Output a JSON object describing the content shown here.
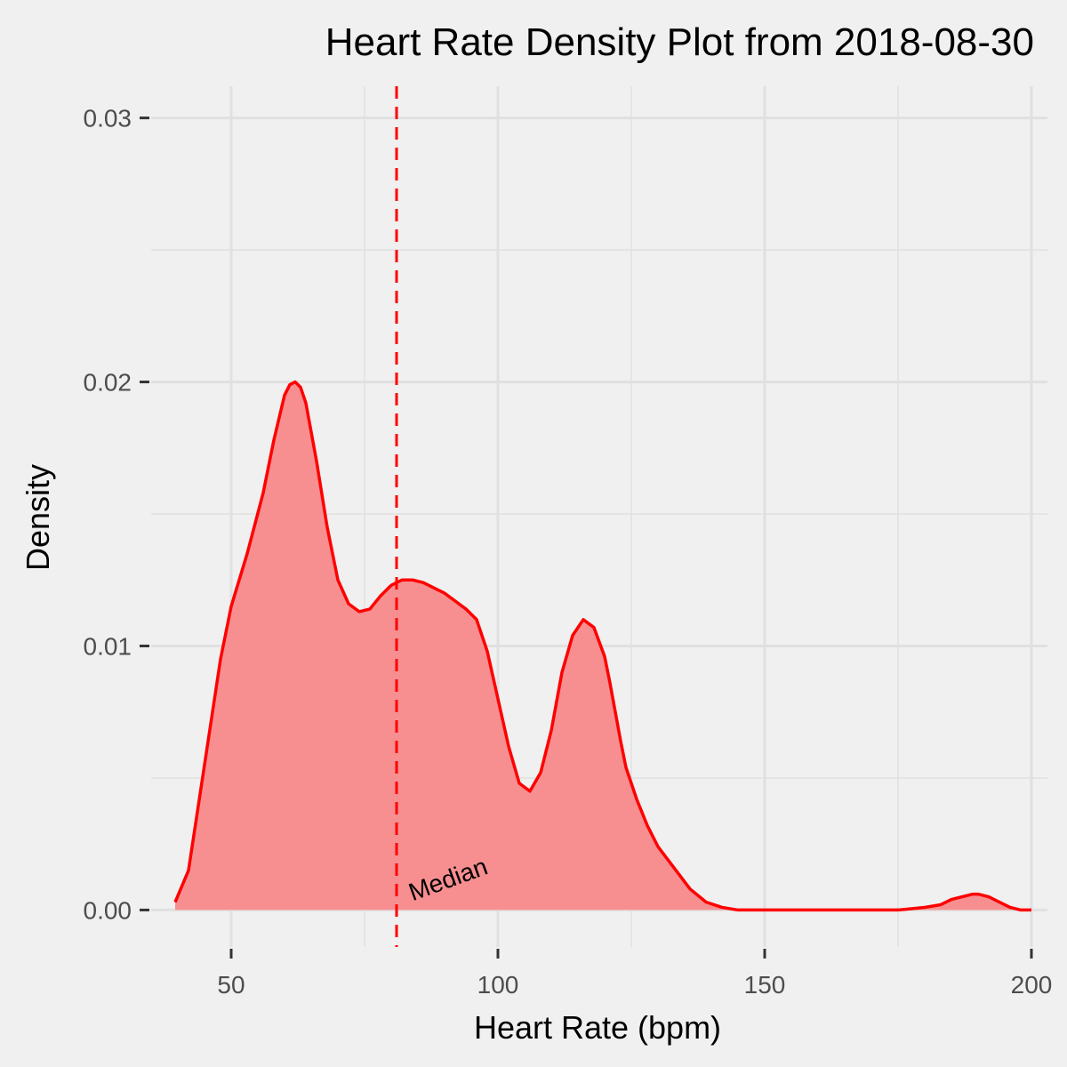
{
  "chart_data": {
    "type": "area",
    "title": "Heart Rate Density Plot from 2018-08-30",
    "xlabel": "Heart Rate (bpm)",
    "ylabel": "Density",
    "xlim": [
      35,
      203
    ],
    "ylim": [
      -0.0014,
      0.0312
    ],
    "x_ticks": [
      50,
      100,
      150,
      200
    ],
    "x_tick_labels": [
      "50",
      "100",
      "150",
      "200"
    ],
    "x_minor_ticks": [
      75,
      125,
      175
    ],
    "y_ticks": [
      0.0,
      0.01,
      0.02,
      0.03
    ],
    "y_tick_labels": [
      "0.00",
      "0.01",
      "0.02",
      "0.03"
    ],
    "y_minor_ticks": [
      0.005,
      0.015,
      0.025
    ],
    "grid": true,
    "colors": {
      "line": "#ff0000",
      "fill": "#f78f91",
      "background": "#f0f0f0",
      "grid": "#e0e0e0"
    },
    "series": [
      {
        "x": [
          39.5,
          42,
          45,
          48,
          50,
          53,
          56,
          58,
          60,
          61,
          62,
          63,
          64,
          66,
          68,
          70,
          72,
          74,
          76,
          78,
          80,
          82,
          84,
          86,
          88,
          90,
          92,
          94,
          96,
          98,
          100,
          102,
          104,
          106,
          108,
          110,
          112,
          114,
          116,
          118,
          120,
          121,
          122,
          123,
          124,
          126,
          128,
          130,
          133,
          136,
          139,
          142,
          145,
          148,
          150,
          155,
          160,
          165,
          170,
          175,
          180,
          183,
          185,
          187,
          189,
          190,
          192,
          194,
          196,
          198,
          200
        ],
        "y": [
          0.0003,
          0.0015,
          0.0055,
          0.0095,
          0.0115,
          0.0135,
          0.0158,
          0.0178,
          0.0195,
          0.0199,
          0.02,
          0.0198,
          0.0192,
          0.017,
          0.0145,
          0.0125,
          0.0116,
          0.0113,
          0.0114,
          0.0119,
          0.0123,
          0.0125,
          0.0125,
          0.0124,
          0.0122,
          0.012,
          0.0117,
          0.0114,
          0.011,
          0.0098,
          0.008,
          0.0062,
          0.0048,
          0.0045,
          0.0052,
          0.0068,
          0.009,
          0.0104,
          0.011,
          0.0107,
          0.0096,
          0.0086,
          0.0075,
          0.0064,
          0.0054,
          0.0042,
          0.0032,
          0.0024,
          0.0016,
          0.0008,
          0.0003,
          0.0001,
          0.0,
          0.0,
          0.0,
          0.0,
          0.0,
          0.0,
          0.0,
          0.0,
          0.0001,
          0.0002,
          0.0004,
          0.0005,
          0.0006,
          0.0006,
          0.0005,
          0.0003,
          0.0001,
          0.0,
          0.0
        ]
      }
    ],
    "median_line": {
      "x": 81,
      "label": "Median"
    }
  }
}
